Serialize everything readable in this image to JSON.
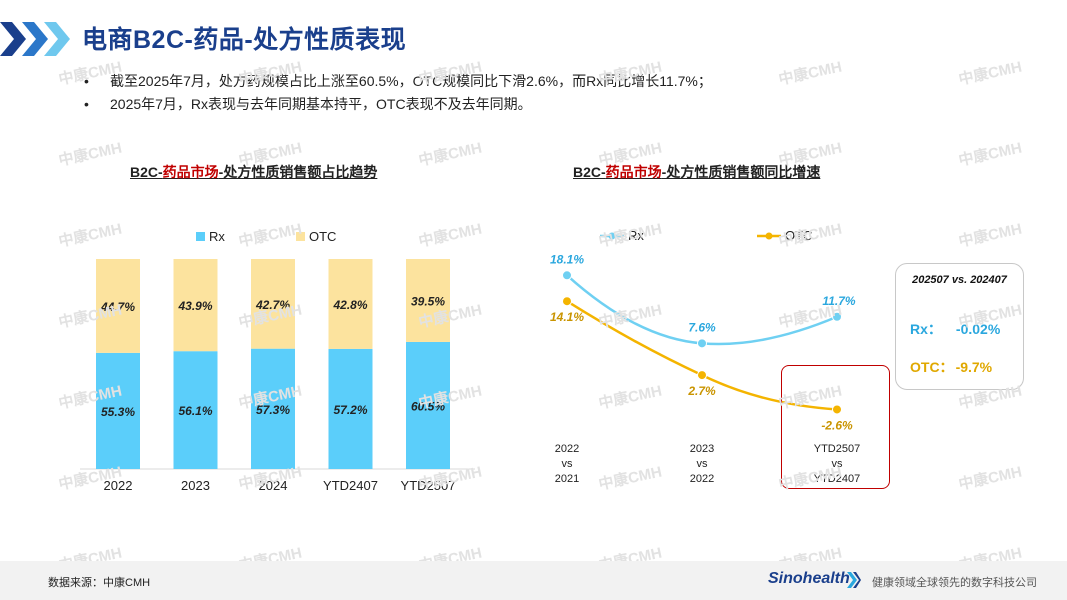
{
  "page": {
    "title": "电商B2C-药品-处方性质表现",
    "bullets": [
      "截至2025年7月，处方药规模占比上涨至60.5%，OTC规模同比下滑2.6%，而Rx同比增长11.7%；",
      "2025年7月，Rx表现与去年同期基本持平，OTC表现不及去年同期。"
    ]
  },
  "watermark": "中康CMH",
  "charts_titles": {
    "left": {
      "pre": "B2C-",
      "red": "药品市场",
      "post": "-处方性质销售额占比趋势"
    },
    "right": {
      "pre": "B2C-",
      "red": "药品市场",
      "post": "-处方性质销售额同比增速"
    }
  },
  "colors": {
    "rx": "#5bcefa",
    "otc": "#fce39e",
    "rx_line": "#6fd0f2",
    "otc_line": "#f4b400",
    "title": "#1a3f8c",
    "red": "#c00000"
  },
  "chart_data": [
    {
      "type": "bar",
      "stacked": true,
      "title": "B2C-药品市场-处方性质销售额占比趋势",
      "categories": [
        "2022",
        "2023",
        "2024",
        "YTD2407",
        "YTD2507"
      ],
      "series": [
        {
          "name": "Rx",
          "values": [
            55.3,
            56.1,
            57.3,
            57.2,
            60.5
          ],
          "labels": [
            "55.3%",
            "56.1%",
            "57.3%",
            "57.2%",
            "60.5%"
          ]
        },
        {
          "name": "OTC",
          "values": [
            44.7,
            43.9,
            42.7,
            42.8,
            39.5
          ],
          "labels": [
            "44.7%",
            "43.9%",
            "42.7%",
            "42.8%",
            "39.5%"
          ]
        }
      ],
      "ylim": [
        0,
        100
      ],
      "legend": "top"
    },
    {
      "type": "line",
      "title": "B2C-药品市场-处方性质销售额同比增速",
      "categories": [
        [
          "2022",
          "vs",
          "2021"
        ],
        [
          "2023",
          "vs",
          "2022"
        ],
        [
          "YTD2507",
          "vs",
          "YTD2407"
        ]
      ],
      "series": [
        {
          "name": "Rx",
          "values": [
            18.1,
            7.6,
            11.7
          ],
          "labels": [
            "18.1%",
            "7.6%",
            "11.7%"
          ]
        },
        {
          "name": "OTC",
          "values": [
            14.1,
            2.7,
            -2.6
          ],
          "labels": [
            "14.1%",
            "2.7%",
            "-2.6%"
          ]
        }
      ],
      "legend": "top",
      "comparison": {
        "caption": "202507 vs. 202407",
        "rx_label": "Rx：",
        "rx_value": "-0.02%",
        "otc_label": "OTC：",
        "otc_value": "-9.7%"
      }
    }
  ],
  "footer": {
    "source": "数据来源：中康CMH",
    "logo": "Sinohealth",
    "slogan": "健康领域全球领先的数字科技公司"
  }
}
